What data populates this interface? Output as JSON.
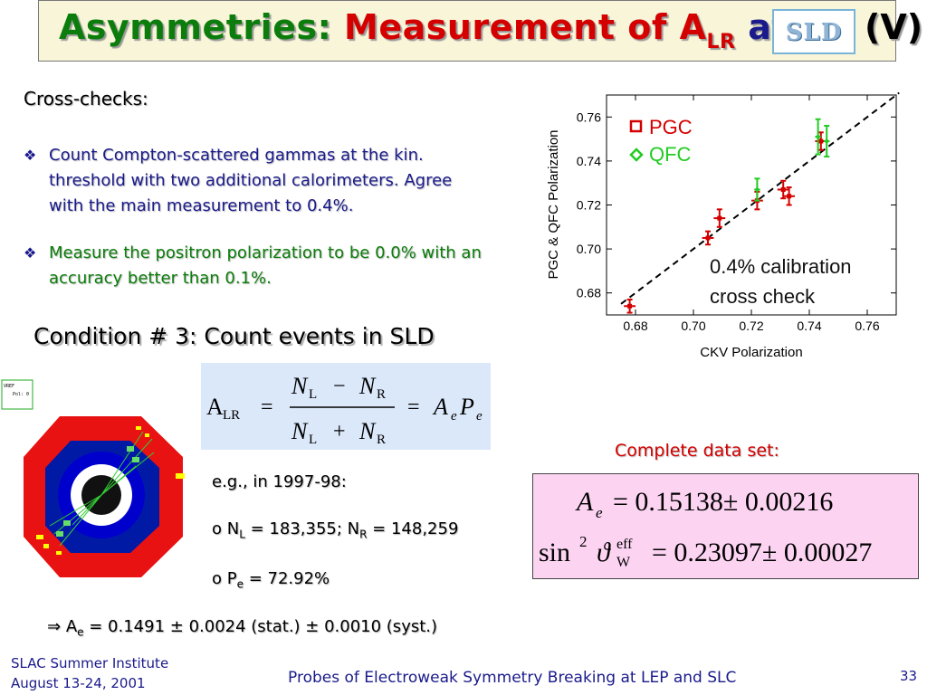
{
  "title": {
    "part1": "Asymmetries: ",
    "part2": "Measurement of A",
    "part2_sub": "LR",
    "part3": " at ",
    "logo_text": "SLD",
    "part4": "(V)"
  },
  "crosschecks": {
    "heading": "Cross-checks:",
    "bullet1": "Count Compton-scattered gammas at the kin. threshold with two additional calorimeters. Agree with the main measurement to 0.4%.",
    "bullet2": "Measure the positron polarization to be 0.0% with an accuracy better than 0.1%.",
    "bullet_mark": "❖"
  },
  "condition": "Condition # 3: Count events in SLD",
  "formula": {
    "lhs": "A",
    "lhs_sub": "LR",
    "eq": "=",
    "num_N": "N",
    "num_sub1": "L",
    "minus": "−",
    "num_sub2": "R",
    "den_sub1": "L",
    "plus": "+",
    "den_sub2": "R",
    "rhs_A": "A",
    "rhs_e": "e",
    "rhs_P": "P"
  },
  "example": {
    "line1": "e.g., in 1997-98:",
    "line2_prefix": "o N",
    "line2_sub1": "L",
    "line2_mid": " = 183,355; N",
    "line2_sub2": "R",
    "line2_suffix": " = 148,259",
    "line3_prefix": "o P",
    "line3_sub": "e",
    "line3_suffix": " = 72.92%"
  },
  "result": {
    "arrow": "⇒",
    "text_pre": " A",
    "text_sub": "e",
    "text_post": " = 0.1491 ± 0.0024 (stat.) ± 0.0010 (syst.)"
  },
  "detector": {
    "panel_lines": [
      "VREF",
      "Pol: 0"
    ]
  },
  "complete_label": "Complete data set:",
  "final_results": {
    "line1_lhs": "A",
    "line1_sub": "e",
    "line1_rhs": "= 0.15138± 0.00216",
    "line2_lhs": "sin",
    "line2_sup": "2",
    "line2_theta": "ϑ",
    "line2_theta_sup": "eff",
    "line2_theta_sub": "W",
    "line2_rhs": "= 0.23097± 0.00027"
  },
  "chart_data": {
    "type": "scatter",
    "xlabel": "CKV Polarization",
    "ylabel": "PGC & QFC Polarization",
    "xlim": [
      0.67,
      0.77
    ],
    "ylim": [
      0.67,
      0.77
    ],
    "xticks": [
      0.68,
      0.7,
      0.72,
      0.74,
      0.76
    ],
    "yticks": [
      0.68,
      0.7,
      0.72,
      0.74,
      0.76
    ],
    "tick_labels": [
      "0.68",
      "0.70",
      "0.72",
      "0.74",
      "0.76"
    ],
    "series": [
      {
        "name": "PGC",
        "color": "#d40000",
        "marker": "square",
        "points": [
          {
            "x": 0.678,
            "y": 0.674,
            "xerr": 0.002,
            "yerr": 0.003
          },
          {
            "x": 0.705,
            "y": 0.705,
            "xerr": 0.002,
            "yerr": 0.003
          },
          {
            "x": 0.709,
            "y": 0.714,
            "xerr": 0.002,
            "yerr": 0.004
          },
          {
            "x": 0.722,
            "y": 0.722,
            "xerr": 0.002,
            "yerr": 0.004
          },
          {
            "x": 0.731,
            "y": 0.727,
            "xerr": 0.002,
            "yerr": 0.004
          },
          {
            "x": 0.733,
            "y": 0.724,
            "xerr": 0.002,
            "yerr": 0.004
          },
          {
            "x": 0.744,
            "y": 0.749,
            "xerr": 0.002,
            "yerr": 0.004
          }
        ]
      },
      {
        "name": "QFC",
        "color": "#22cc22",
        "marker": "diamond",
        "points": [
          {
            "x": 0.722,
            "y": 0.727,
            "xerr": 0.001,
            "yerr": 0.005
          },
          {
            "x": 0.743,
            "y": 0.751,
            "xerr": 0.001,
            "yerr": 0.008
          },
          {
            "x": 0.746,
            "y": 0.749,
            "xerr": 0.001,
            "yerr": 0.007
          }
        ]
      }
    ],
    "reference_line": {
      "from": [
        0.675,
        0.675
      ],
      "to": [
        0.771,
        0.771
      ],
      "style": "dashed"
    },
    "annotation_line1": "0.4% calibration",
    "annotation_line2": "cross check",
    "legend_placement": "top-left"
  },
  "footer": {
    "left_line1": "SLAC Summer Institute",
    "left_line2": "August 13-24, 2001",
    "center": "Probes of Electroweak Symmetry Breaking at LEP and SLC",
    "page": "33"
  }
}
